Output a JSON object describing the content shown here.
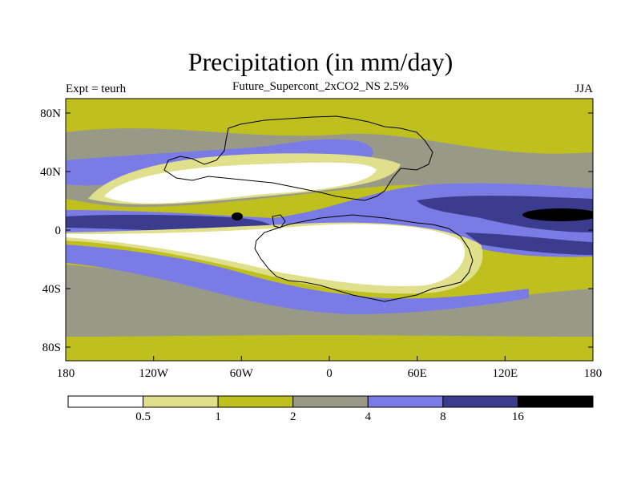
{
  "title": "Precipitation (in mm/day)",
  "subtitle": "Future_Supercont_2xCO2_NS 2.5%",
  "left_label": "Expt = teurh",
  "right_label": "JJA",
  "axes": {
    "lat_ticks": [
      "80N",
      "40N",
      "0",
      "40S",
      "80S"
    ],
    "lon_ticks": [
      "180",
      "120W",
      "60W",
      "0",
      "60E",
      "120E",
      "180"
    ]
  },
  "colorbar": {
    "colors": [
      "#ffffff",
      "#e0e08c",
      "#bfbf1e",
      "#999988",
      "#7b7be6",
      "#3c3c8e",
      "#000000"
    ],
    "labels": [
      "0.5",
      "1",
      "2",
      "4",
      "8",
      "16"
    ]
  }
}
